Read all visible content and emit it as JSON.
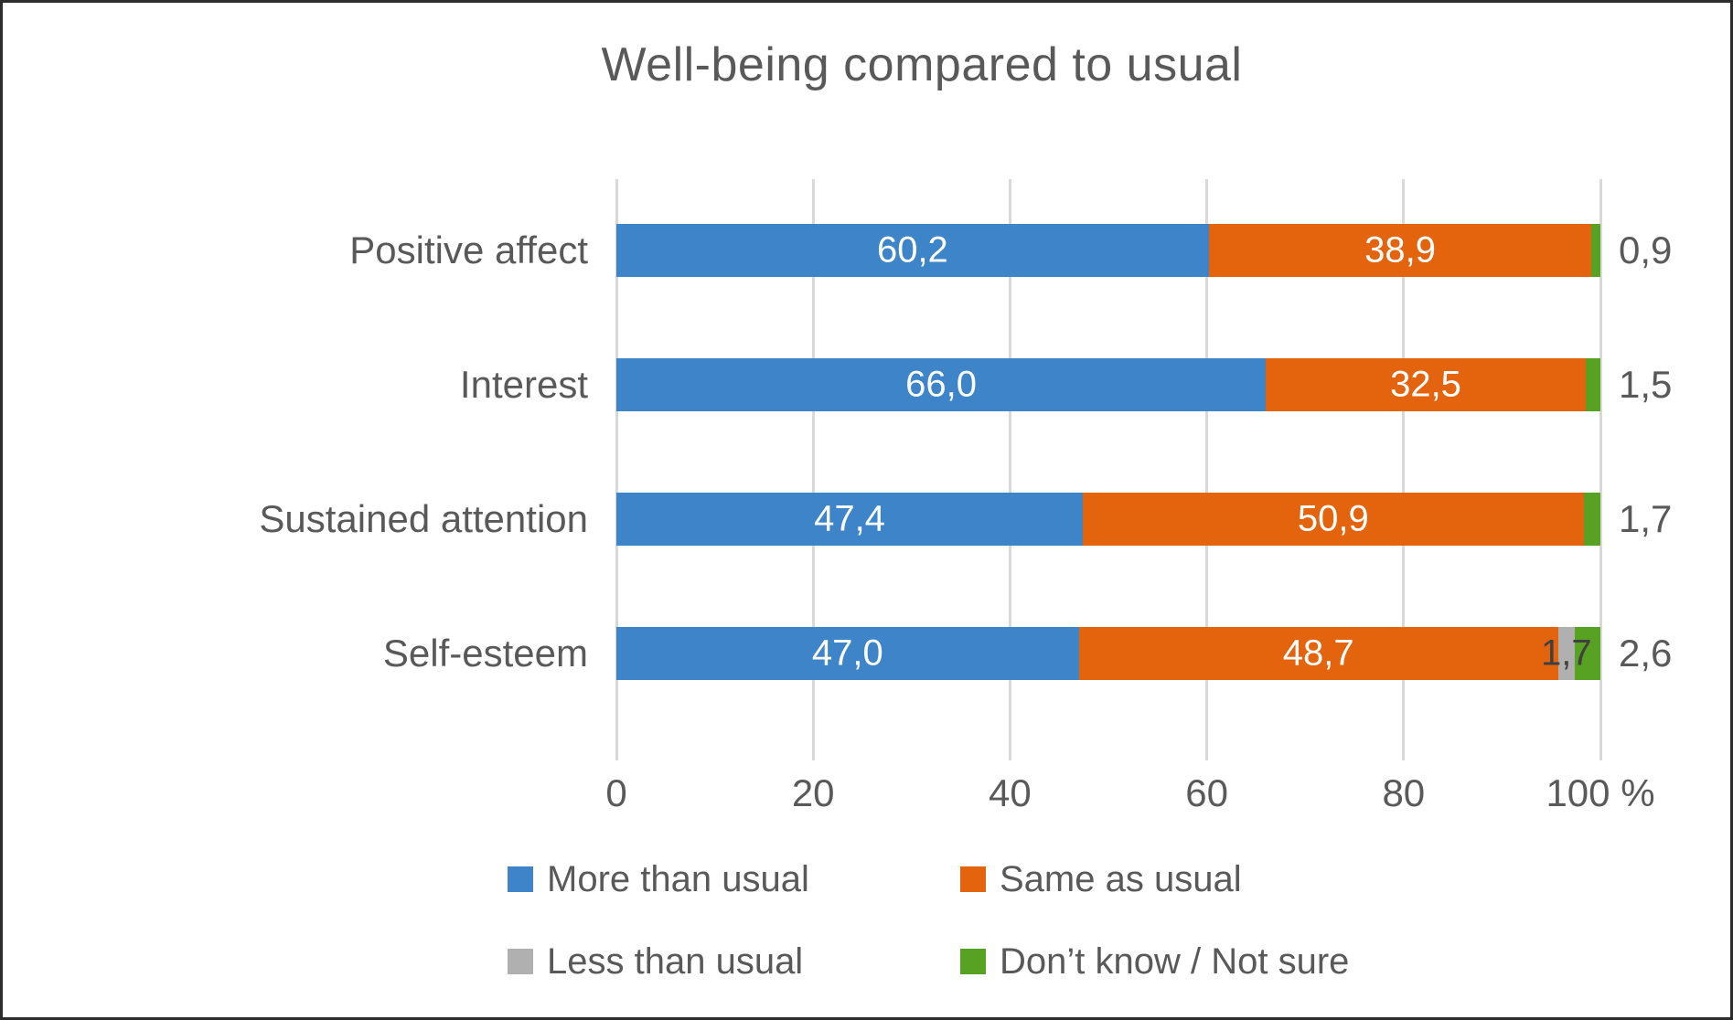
{
  "window": {
    "background": "#ffffff",
    "border_color": "#2d2d2d"
  },
  "text_colors": {
    "title": "#595959",
    "axis_and_labels": "#595959",
    "inside_bar_label": "#ffffff",
    "dark_segment_label": "#404040",
    "gridline": "#d9d9d9"
  },
  "chart_data": {
    "type": "bar",
    "orientation": "horizontal",
    "stacked": true,
    "title": "Well-being compared to usual",
    "unit": "%",
    "xlim": [
      0,
      100
    ],
    "grid": true,
    "legend_position": "bottom",
    "x_ticks": [
      {
        "label": "0",
        "value": 0
      },
      {
        "label": "20",
        "value": 20
      },
      {
        "label": "40",
        "value": 40
      },
      {
        "label": "60",
        "value": 60
      },
      {
        "label": "80",
        "value": 80
      },
      {
        "label": "100 %",
        "value": 100
      }
    ],
    "series": [
      {
        "name": "More than usual",
        "color": "#3d85c8"
      },
      {
        "name": "Same as usual",
        "color": "#e4640e"
      },
      {
        "name": "Less than usual",
        "color": "#b0b0b0"
      },
      {
        "name": "Don’t know / Not sure",
        "color": "#57a222"
      }
    ],
    "rows": [
      {
        "category": "Positive affect",
        "segments": [
          {
            "series": "More than usual",
            "value": 60.2,
            "label": "60,2",
            "label_style": "inside-white"
          },
          {
            "series": "Same as usual",
            "value": 38.9,
            "label": "38,9",
            "label_style": "inside-white"
          },
          {
            "series": "Don’t know / Not sure",
            "value": 0.9,
            "label": "0,9",
            "label_style": "outside"
          }
        ]
      },
      {
        "category": "Interest",
        "segments": [
          {
            "series": "More than usual",
            "value": 66.0,
            "label": "66,0",
            "label_style": "inside-white"
          },
          {
            "series": "Same as usual",
            "value": 32.5,
            "label": "32,5",
            "label_style": "inside-white"
          },
          {
            "series": "Don’t know / Not sure",
            "value": 1.5,
            "label": "1,5",
            "label_style": "outside"
          }
        ]
      },
      {
        "category": "Sustained attention",
        "segments": [
          {
            "series": "More than usual",
            "value": 47.4,
            "label": "47,4",
            "label_style": "inside-white"
          },
          {
            "series": "Same as usual",
            "value": 50.9,
            "label": "50,9",
            "label_style": "inside-white"
          },
          {
            "series": "Don’t know / Not sure",
            "value": 1.7,
            "label": "1,7",
            "label_style": "outside"
          }
        ]
      },
      {
        "category": "Self-esteem",
        "segments": [
          {
            "series": "More than usual",
            "value": 47.0,
            "label": "47,0",
            "label_style": "inside-white"
          },
          {
            "series": "Same as usual",
            "value": 48.7,
            "label": "48,7",
            "label_style": "inside-white"
          },
          {
            "series": "Less than usual",
            "value": 1.7,
            "label": "1,7",
            "label_style": "inside-dark"
          },
          {
            "series": "Don’t know / Not sure",
            "value": 2.6,
            "label": "2,6",
            "label_style": "outside"
          }
        ]
      }
    ]
  },
  "legend": {
    "rows": [
      [
        {
          "series": "More than usual"
        },
        {
          "series": "Same as usual"
        }
      ],
      [
        {
          "series": "Less than usual"
        },
        {
          "series": "Don’t know / Not sure"
        }
      ]
    ]
  }
}
